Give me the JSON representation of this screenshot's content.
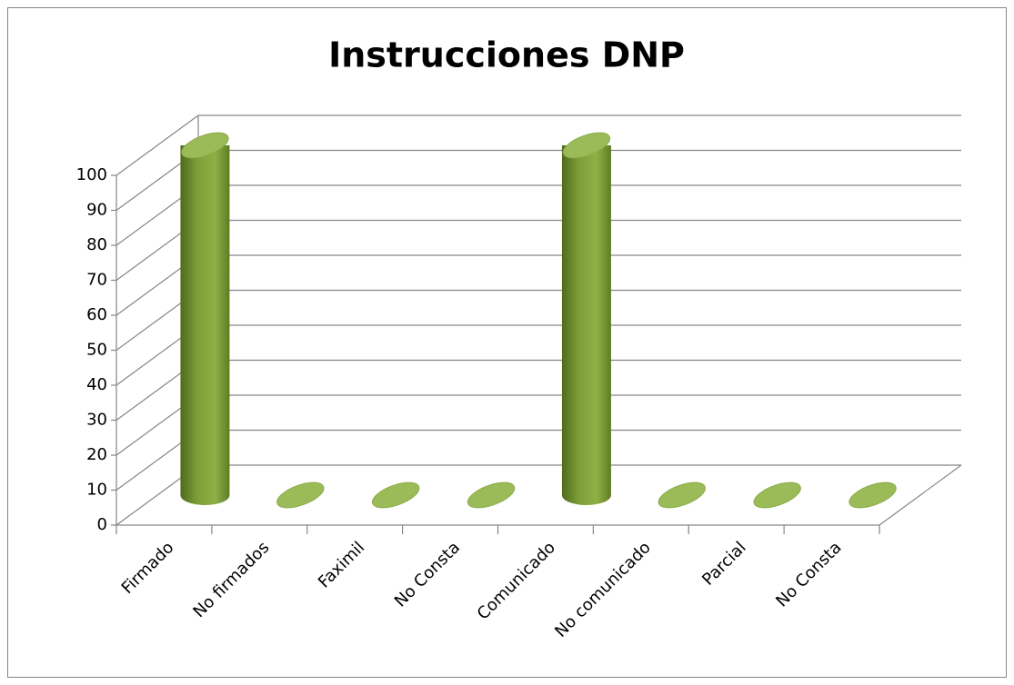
{
  "chart_data": {
    "type": "bar",
    "title": "Instrucciones DNP",
    "categories": [
      "Firmado",
      "No firmados",
      "Faximil",
      "No Consta",
      "Comunicado",
      "No comunicado",
      "Parcial",
      "No Consta"
    ],
    "values": [
      100,
      0,
      0,
      0,
      100,
      0,
      0,
      0
    ],
    "color": "#9bbb59",
    "ylim": [
      0,
      100
    ],
    "yticks": [
      0,
      10,
      20,
      30,
      40,
      50,
      60,
      70,
      80,
      90,
      100
    ],
    "grid": true
  }
}
